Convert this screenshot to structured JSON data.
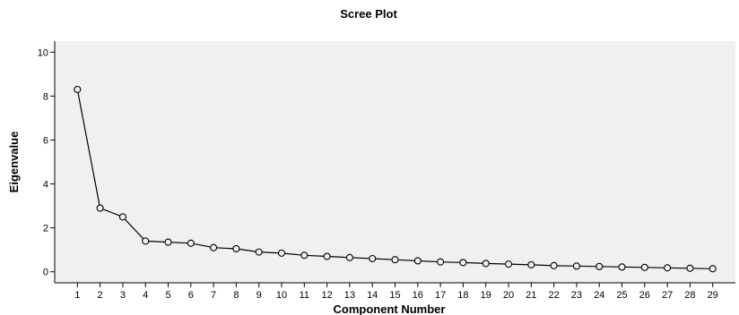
{
  "chart_data": {
    "type": "line",
    "title": "Scree Plot",
    "xlabel": "Component Number",
    "ylabel": "Eigenvalue",
    "xlim": [
      0,
      30
    ],
    "ylim": [
      -0.5,
      10.5
    ],
    "x_ticks": [
      1,
      2,
      3,
      4,
      5,
      6,
      7,
      8,
      9,
      10,
      11,
      12,
      13,
      14,
      15,
      16,
      17,
      18,
      19,
      20,
      21,
      22,
      23,
      24,
      25,
      26,
      27,
      28,
      29
    ],
    "y_ticks": [
      0,
      2,
      4,
      6,
      8,
      10
    ],
    "grid": false,
    "plot_background": "#f0f0f0",
    "line_color": "#000000",
    "marker": "open-circle",
    "series": [
      {
        "x": [
          1,
          2,
          3,
          4,
          5,
          6,
          7,
          8,
          9,
          10,
          11,
          12,
          13,
          14,
          15,
          16,
          17,
          18,
          19,
          20,
          21,
          22,
          23,
          24,
          25,
          26,
          27,
          28,
          29
        ],
        "values": [
          8.3,
          2.9,
          2.5,
          1.4,
          1.35,
          1.3,
          1.1,
          1.05,
          0.9,
          0.85,
          0.75,
          0.7,
          0.65,
          0.6,
          0.55,
          0.5,
          0.45,
          0.42,
          0.38,
          0.35,
          0.32,
          0.28,
          0.26,
          0.24,
          0.22,
          0.2,
          0.18,
          0.16,
          0.14
        ]
      }
    ]
  }
}
